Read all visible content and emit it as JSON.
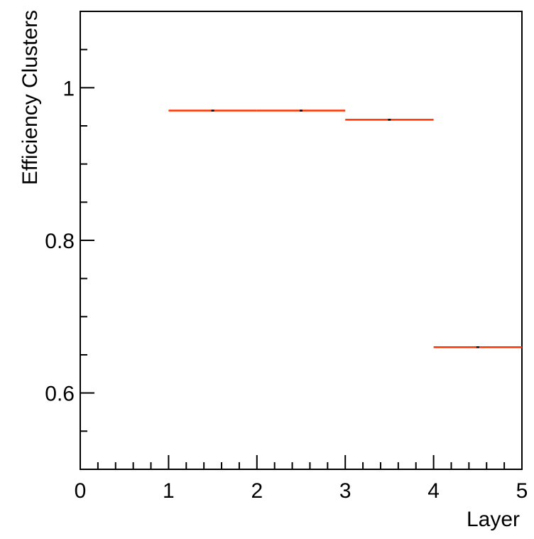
{
  "chart_data": {
    "type": "line",
    "style": "histogram-steps",
    "xlabel": "Layer",
    "ylabel": "Efficiency Clusters",
    "xlim": [
      0,
      5
    ],
    "ylim": [
      0.5,
      1.1
    ],
    "x_ticks": [
      0,
      1,
      2,
      3,
      4,
      5
    ],
    "y_ticks": [
      0.6,
      0.8,
      1.0
    ],
    "x_tick_labels": [
      "0",
      "1",
      "2",
      "3",
      "4",
      "5"
    ],
    "y_tick_labels": [
      "0.6",
      "0.8",
      "1"
    ],
    "grid": false,
    "series": [
      {
        "color": "#ff3300",
        "bins": [
          {
            "x0": 1,
            "x1": 2,
            "y": 0.97
          },
          {
            "x0": 2,
            "x1": 3,
            "y": 0.97
          },
          {
            "x0": 3,
            "x1": 4,
            "y": 0.958
          },
          {
            "x0": 4,
            "x1": 5,
            "y": 0.66
          }
        ]
      }
    ]
  }
}
